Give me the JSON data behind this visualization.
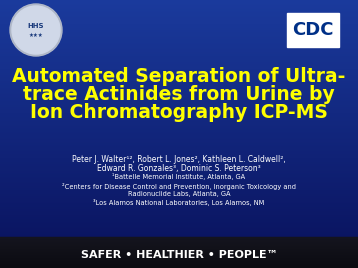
{
  "bg_color_top": "#1a3a9c",
  "bg_color_bottom": "#08105a",
  "footer_bg": "#111111",
  "title_text_line1": "Automated Separation of Ultra-",
  "title_text_line2": "trace Actinides from Urine by",
  "title_text_line3": "Ion Chromatography ICP-MS",
  "title_color": "#ffff00",
  "title_fontsize": 13.5,
  "authors_line1": "Peter J. Walter¹², Robert L. Jones², Kathleen L. Caldwell²,",
  "authors_line2": "Edward R. Gonzales³, Dominic S. Peterson³",
  "affil1": "¹Battelle Memorial Institute, Atlanta, GA",
  "affil2": "²Centers for Disease Control and Prevention, Inorganic Toxicology and",
  "affil2b": "Radionuclide Labs, Atlanta, GA",
  "affil3": "³Los Alamos National Laboratories, Los Alamos, NM",
  "author_color": "#ffffff",
  "author_fontsize": 5.5,
  "affil_fontsize": 4.8,
  "footer_text": "SAFER • HEALTHIER • PEOPLE™",
  "footer_color": "#ffffff",
  "footer_fontsize": 8.0,
  "cdc_text": "CDC",
  "cdc_color": "#003087",
  "cdc_bg": "#ffffff"
}
